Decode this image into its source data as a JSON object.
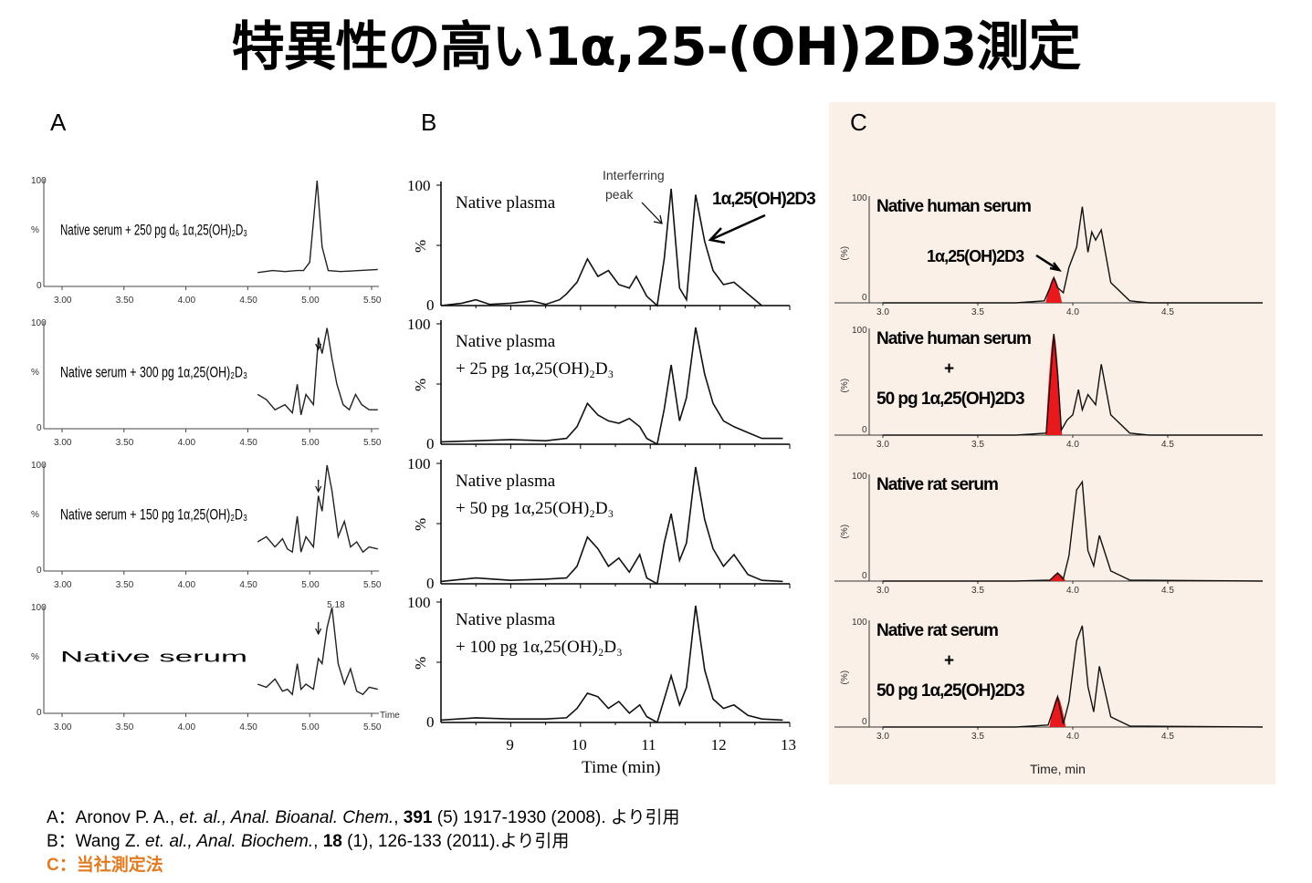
{
  "page_title": "特異性の高い1α,25-(OH)2D3測定",
  "panels": {
    "A": {
      "label": "A",
      "x_ticks": [
        "3.00",
        "3.50",
        "4.00",
        "4.50",
        "5.00",
        "5.50"
      ],
      "y_top": "100",
      "y_zero": "0",
      "y_unit": "%",
      "x_axis_title": "Time",
      "peak_label": "5.18",
      "traces": [
        {
          "label": "Native serum + 250 pg d₆ 1α,25(OH)₂D₃"
        },
        {
          "label": "Native serum + 300 pg 1α,25(OH)₂D₃"
        },
        {
          "label": "Native serum + 150 pg 1α,25(OH)₂D₃"
        },
        {
          "label": "Native serum"
        }
      ]
    },
    "B": {
      "label": "B",
      "x_ticks": [
        "9",
        "10",
        "11",
        "12",
        "13"
      ],
      "y_top": "100",
      "y_zero": "0",
      "y_unit": "%",
      "x_axis_title": "Time (min)",
      "annotation_interfering_1": "Interferring",
      "annotation_interfering_2": "peak",
      "annotation_analyte": "1α,25(OH)2D3",
      "traces": [
        {
          "line1": "Native plasma",
          "line2": ""
        },
        {
          "line1": "Native plasma",
          "line2": "+ 25 pg 1α,25(OH)₂D₃"
        },
        {
          "line1": "Native plasma",
          "line2": "+ 50 pg 1α,25(OH)₂D₃"
        },
        {
          "line1": "Native plasma",
          "line2": "+ 100 pg 1α,25(OH)₂D₃"
        }
      ]
    },
    "C": {
      "label": "C",
      "x_ticks": [
        "3.0",
        "3.5",
        "4.0",
        "4.5"
      ],
      "y_top": "100",
      "y_zero": "0",
      "y_unit": "(%)",
      "x_axis_title": "Time, min",
      "analyte_label": "1α,25(OH)2D3",
      "highlight_color": "#e8191c",
      "traces": [
        {
          "line1": "Native human serum",
          "line2": "",
          "line3": ""
        },
        {
          "line1": "Native human serum",
          "line2": "+",
          "line3": "50 pg 1α,25(OH)2D3"
        },
        {
          "line1": "Native rat serum",
          "line2": "",
          "line3": ""
        },
        {
          "line1": "Native rat serum",
          "line2": "+",
          "line3": "50 pg 1α,25(OH)2D3"
        }
      ]
    }
  },
  "chart_data": [
    {
      "type": "line",
      "title": "A",
      "xlabel": "Time",
      "ylabel": "%",
      "xlim": [
        2.9,
        5.6
      ],
      "ylim": [
        0,
        100
      ],
      "series": [
        {
          "name": "Native serum + 250 pg d₆ 1α,25(OH)₂D₃",
          "x": [
            4.58,
            4.7,
            4.8,
            4.9,
            4.95,
            5.0,
            5.03,
            5.06,
            5.1,
            5.15,
            5.25,
            5.4,
            5.55
          ],
          "y": [
            10,
            12,
            11,
            12,
            12,
            20,
            60,
            100,
            35,
            12,
            11,
            12,
            13
          ]
        },
        {
          "name": "Native serum + 300 pg 1α,25(OH)₂D₃",
          "x": [
            4.58,
            4.65,
            4.72,
            4.8,
            4.86,
            4.9,
            4.93,
            4.97,
            5.03,
            5.07,
            5.1,
            5.14,
            5.18,
            5.22,
            5.27,
            5.32,
            5.37,
            5.42,
            5.48,
            5.55
          ],
          "y": [
            30,
            25,
            15,
            20,
            12,
            40,
            10,
            30,
            20,
            85,
            70,
            95,
            65,
            40,
            20,
            15,
            30,
            20,
            15,
            15
          ]
        },
        {
          "name": "Native serum + 150 pg 1α,25(OH)₂D₃",
          "x": [
            4.58,
            4.65,
            4.72,
            4.78,
            4.82,
            4.86,
            4.9,
            4.93,
            4.97,
            5.03,
            5.07,
            5.1,
            5.14,
            5.18,
            5.23,
            5.28,
            5.33,
            5.38,
            5.43,
            5.48,
            5.55
          ],
          "y": [
            25,
            30,
            20,
            28,
            18,
            15,
            50,
            15,
            30,
            20,
            70,
            55,
            100,
            75,
            30,
            45,
            20,
            25,
            15,
            20,
            18
          ]
        },
        {
          "name": "Native serum",
          "x": [
            4.58,
            4.65,
            4.72,
            4.78,
            4.82,
            4.86,
            4.9,
            4.93,
            4.97,
            5.03,
            5.07,
            5.1,
            5.14,
            5.18,
            5.23,
            5.28,
            5.33,
            5.38,
            5.43,
            5.48,
            5.55
          ],
          "y": [
            25,
            22,
            30,
            18,
            20,
            15,
            45,
            20,
            25,
            20,
            50,
            45,
            80,
            100,
            45,
            25,
            40,
            18,
            15,
            22,
            20
          ]
        }
      ]
    },
    {
      "type": "line",
      "title": "B",
      "xlabel": "Time (min)",
      "ylabel": "%",
      "xlim": [
        8.0,
        13.0
      ],
      "ylim": [
        0,
        100
      ],
      "series": [
        {
          "name": "Native plasma",
          "x": [
            8.0,
            8.3,
            8.5,
            8.7,
            9.0,
            9.3,
            9.5,
            9.7,
            9.8,
            9.95,
            10.1,
            10.25,
            10.4,
            10.55,
            10.7,
            10.8,
            10.95,
            11.1,
            11.2,
            11.3,
            11.42,
            11.52,
            11.65,
            11.78,
            11.9,
            12.05,
            12.2,
            12.4,
            12.6
          ],
          "y": [
            0,
            2,
            5,
            1,
            2,
            4,
            1,
            5,
            10,
            20,
            40,
            25,
            30,
            18,
            15,
            25,
            8,
            0,
            40,
            100,
            15,
            5,
            95,
            55,
            30,
            18,
            20,
            10,
            0
          ]
        },
        {
          "name": "Native plasma + 25 pg 1α,25(OH)₂D₃",
          "x": [
            8.0,
            8.5,
            9.0,
            9.5,
            9.8,
            9.95,
            10.1,
            10.25,
            10.4,
            10.55,
            10.7,
            10.85,
            10.95,
            11.1,
            11.2,
            11.3,
            11.42,
            11.52,
            11.65,
            11.78,
            11.9,
            12.05,
            12.2,
            12.4,
            12.6,
            12.9
          ],
          "y": [
            2,
            3,
            4,
            3,
            5,
            15,
            35,
            25,
            20,
            18,
            22,
            15,
            5,
            0,
            30,
            68,
            20,
            40,
            100,
            60,
            35,
            20,
            15,
            10,
            5,
            5
          ]
        },
        {
          "name": "Native plasma + 50 pg 1α,25(OH)₂D₃",
          "x": [
            8.0,
            8.5,
            9.0,
            9.5,
            9.8,
            9.95,
            10.1,
            10.25,
            10.4,
            10.55,
            10.7,
            10.85,
            10.95,
            11.1,
            11.2,
            11.3,
            11.42,
            11.52,
            11.65,
            11.78,
            11.9,
            12.05,
            12.2,
            12.4,
            12.6,
            12.9
          ],
          "y": [
            2,
            5,
            3,
            4,
            5,
            15,
            40,
            30,
            15,
            22,
            10,
            25,
            5,
            0,
            35,
            60,
            20,
            35,
            100,
            55,
            30,
            15,
            25,
            8,
            3,
            2
          ]
        },
        {
          "name": "Native plasma + 100 pg 1α,25(OH)₂D₃",
          "x": [
            8.0,
            8.5,
            9.0,
            9.5,
            9.8,
            9.95,
            10.1,
            10.25,
            10.4,
            10.55,
            10.7,
            10.85,
            10.95,
            11.1,
            11.2,
            11.3,
            11.42,
            11.52,
            11.65,
            11.78,
            11.9,
            12.05,
            12.2,
            12.4,
            12.6,
            12.9
          ],
          "y": [
            2,
            4,
            3,
            3,
            4,
            12,
            25,
            22,
            12,
            18,
            8,
            15,
            5,
            0,
            20,
            40,
            15,
            30,
            100,
            45,
            20,
            12,
            15,
            6,
            3,
            2
          ]
        }
      ]
    },
    {
      "type": "line",
      "title": "C",
      "xlabel": "Time, min",
      "ylabel": "(%)",
      "xlim": [
        2.95,
        5.0
      ],
      "ylim": [
        0,
        100
      ],
      "series": [
        {
          "name": "Native human serum",
          "x": [
            3.0,
            3.7,
            3.85,
            3.88,
            3.9,
            3.92,
            3.95,
            3.98,
            4.02,
            4.05,
            4.08,
            4.1,
            4.12,
            4.15,
            4.2,
            4.3,
            4.4,
            5.0
          ],
          "y": [
            0,
            0,
            2,
            15,
            25,
            15,
            10,
            35,
            55,
            95,
            50,
            70,
            62,
            72,
            20,
            2,
            0,
            0
          ],
          "highlight_peak": {
            "x": 3.9,
            "y": 25
          }
        },
        {
          "name": "Native human serum + 50 pg 1α,25(OH)2D3",
          "x": [
            3.0,
            3.7,
            3.86,
            3.88,
            3.9,
            3.92,
            3.94,
            3.97,
            4.0,
            4.03,
            4.05,
            4.08,
            4.12,
            4.15,
            4.2,
            4.3,
            4.4,
            5.0
          ],
          "y": [
            0,
            0,
            2,
            50,
            100,
            60,
            5,
            15,
            20,
            45,
            25,
            40,
            30,
            70,
            20,
            2,
            0,
            0
          ],
          "highlight_peak": {
            "x": 3.9,
            "y": 100
          }
        },
        {
          "name": "Native rat serum",
          "x": [
            3.0,
            3.7,
            3.88,
            3.92,
            3.95,
            3.98,
            4.02,
            4.05,
            4.08,
            4.11,
            4.14,
            4.2,
            4.3,
            5.0
          ],
          "y": [
            0,
            0,
            1,
            8,
            2,
            25,
            90,
            98,
            30,
            15,
            45,
            10,
            1,
            0
          ],
          "highlight_peak": {
            "x": 3.92,
            "y": 8
          }
        },
        {
          "name": "Native rat serum + 50 pg 1α,25(OH)2D3",
          "x": [
            3.0,
            3.7,
            3.87,
            3.92,
            3.95,
            3.98,
            4.02,
            4.05,
            4.08,
            4.11,
            4.14,
            4.2,
            4.3,
            5.0
          ],
          "y": [
            0,
            0,
            2,
            30,
            3,
            25,
            85,
            100,
            40,
            15,
            60,
            10,
            1,
            0
          ],
          "highlight_peak": {
            "x": 3.92,
            "y": 30
          }
        }
      ]
    }
  ],
  "references": {
    "a_prefix": "A：Aronov P. A., ",
    "a_italic": "et. al., Anal. Bioanal. Chem.",
    "a_mid": ", ",
    "a_bold": "391",
    "a_rest": " (5) 1917-1930 (2008). より引用",
    "b_prefix": "B：Wang Z. ",
    "b_italic": "et. al., Anal. Biochem.",
    "b_mid": ", ",
    "b_bold": "18",
    "b_rest": " (1), 126-133 (2011).より引用",
    "c_text": "C：当社測定法"
  }
}
